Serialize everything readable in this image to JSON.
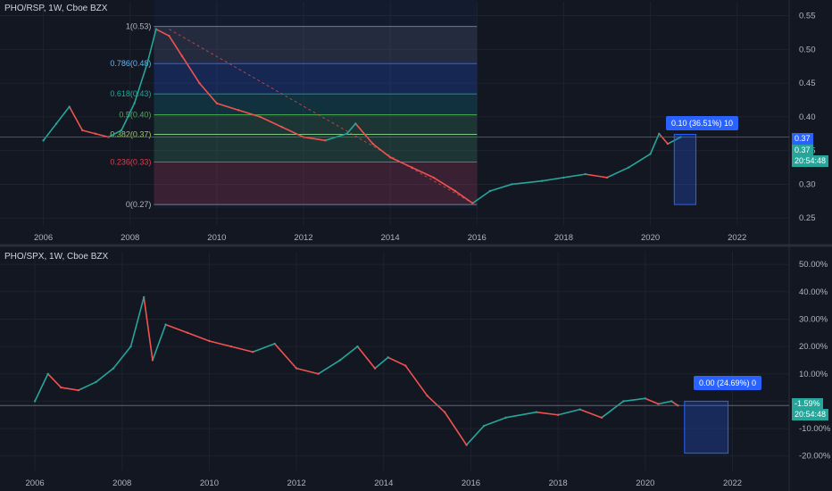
{
  "top_pane": {
    "title": "PHO/RSP, 1W, Cboe BZX",
    "badges": {
      "price_blue": "0.37",
      "price_green": "0.37",
      "countdown": "20:54:48"
    },
    "measure_label": "0.10 (36.51%) 10"
  },
  "bottom_pane": {
    "title": "PHO/SPX, 1W, Cboe BZX",
    "badges": {
      "price": "-1.59%",
      "countdown": "20:54:48"
    },
    "measure_label": "0.00 (24.69%) 0"
  },
  "colors": {
    "background": "#131722",
    "up": "#26a69a",
    "down": "#ef5350",
    "accent": "#2962ff"
  },
  "chart_data": [
    {
      "type": "line",
      "title": "PHO/RSP, 1W, Cboe BZX",
      "x_ticks": [
        "2006",
        "2008",
        "2010",
        "2012",
        "2014",
        "2016",
        "2018",
        "2020",
        "2022"
      ],
      "y_ticks": [
        "0.25",
        "0.30",
        "0.35",
        "0.40",
        "0.45",
        "0.50",
        "0.55"
      ],
      "ylim": [
        0.245,
        0.56
      ],
      "xlim": [
        2005.0,
        2023.2
      ],
      "series": [
        {
          "x": [
            2006.0,
            2006.3,
            2006.6,
            2006.9,
            2007.2,
            2007.5,
            2007.8,
            2008.1,
            2008.4,
            2008.6,
            2008.9,
            2009.2,
            2009.6,
            2010.0,
            2010.5,
            2011.0,
            2011.5,
            2012.0,
            2012.5,
            2013.0,
            2013.2,
            2013.6,
            2014.0,
            2014.5,
            2015.0,
            2015.5,
            2015.9,
            2016.3,
            2016.8,
            2017.5,
            2018.0,
            2018.5,
            2019.0,
            2019.5,
            2020.0,
            2020.2,
            2020.4,
            2020.7
          ],
          "values": [
            0.365,
            0.39,
            0.415,
            0.38,
            0.375,
            0.37,
            0.38,
            0.42,
            0.48,
            0.53,
            0.52,
            0.49,
            0.45,
            0.42,
            0.41,
            0.4,
            0.385,
            0.37,
            0.365,
            0.375,
            0.39,
            0.36,
            0.34,
            0.325,
            0.31,
            0.29,
            0.272,
            0.29,
            0.3,
            0.305,
            0.31,
            0.315,
            0.31,
            0.325,
            0.345,
            0.375,
            0.36,
            0.37
          ]
        }
      ],
      "fib_levels": [
        {
          "label": "1(0.53)",
          "value": 0.534
        },
        {
          "label": "0.786(0.48)",
          "value": 0.479
        },
        {
          "label": "0.618(0.43)",
          "value": 0.434
        },
        {
          "label": "0.5(0.40)",
          "value": 0.403
        },
        {
          "label": "0.382(0.37)",
          "value": 0.374
        },
        {
          "label": "0.236(0.33)",
          "value": 0.333
        },
        {
          "label": "0(0.27)",
          "value": 0.27
        }
      ],
      "last_price": 0.37
    },
    {
      "type": "line",
      "title": "PHO/SPX, 1W, Cboe BZX",
      "x_ticks": [
        "2006",
        "2008",
        "2010",
        "2012",
        "2014",
        "2016",
        "2018",
        "2020",
        "2022"
      ],
      "y_ticks": [
        "50.00%",
        "40.00%",
        "30.00%",
        "20.00%",
        "10.00%",
        "0.00%",
        "-10.00%",
        "-20.00%"
      ],
      "ylim": [
        -24,
        52
      ],
      "xlim": [
        2005.2,
        2023.3
      ],
      "series": [
        {
          "x": [
            2006.0,
            2006.3,
            2006.6,
            2007.0,
            2007.4,
            2007.8,
            2008.2,
            2008.5,
            2008.7,
            2009.0,
            2009.5,
            2010.0,
            2010.5,
            2011.0,
            2011.5,
            2012.0,
            2012.5,
            2013.0,
            2013.4,
            2013.8,
            2014.1,
            2014.5,
            2015.0,
            2015.4,
            2015.9,
            2016.3,
            2016.8,
            2017.5,
            2018.0,
            2018.5,
            2019.0,
            2019.5,
            2020.0,
            2020.3,
            2020.6,
            2020.75
          ],
          "values": [
            0,
            10,
            5,
            4,
            7,
            12,
            20,
            38,
            15,
            28,
            25,
            22,
            20,
            18,
            21,
            12,
            10,
            15,
            20,
            12,
            16,
            13,
            2,
            -4,
            -16,
            -9,
            -6,
            -4,
            -5,
            -3,
            -6,
            0,
            1,
            -1,
            0,
            -1.59
          ]
        }
      ],
      "last_value": -1.59
    }
  ]
}
